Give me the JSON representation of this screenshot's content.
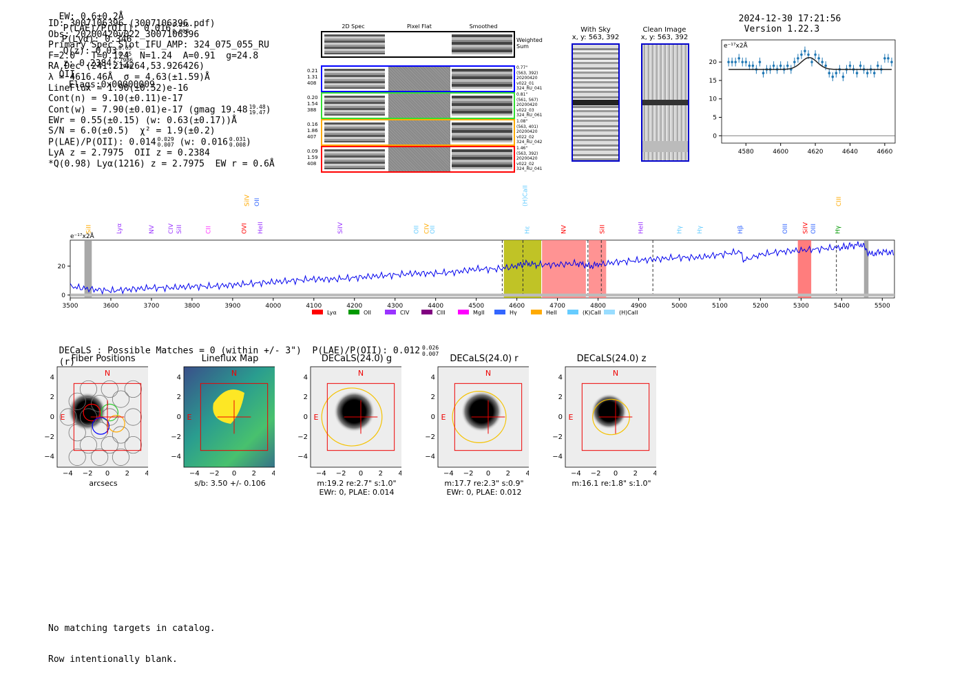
{
  "header": {
    "ew": "EW: 0.6±0.2Å",
    "plae_label": "P(LAE)/P(OII): 0.016",
    "plae_hi": "0.036",
    "plae_lo": "0.008",
    "plya": "P(Lyα): 0.346",
    "qz_label": "Q(z): 0.03",
    "qz_hi": "0.65",
    "qz_lo": "0.65",
    "z_label": "z: 0.2384",
    "z_hi": "2.7986",
    "z_lo": "2.7986",
    "z_tail": "OII",
    "flags": "Flags:0x00000009",
    "datetime": "2024-12-30 17:21:56",
    "version": "Version 1.22.3"
  },
  "info": {
    "lines": [
      "ID: 3007106396 (3007106396.pdf)",
      "Obs: 20200420v022_3007106396",
      "Primary Spec_Slot_IFU_AMP: 324_075_055_RU",
      "F=2.0\"  T=0.124  N=1.24  A=0.91  g=24.8",
      "RA,Dec (241.214264,53.926426)",
      "λ = 4616.46Å  σ = 4.63(±1.59)Å",
      "LineFlux = 1.90(±0.52)e-16",
      "Cont(n) = 9.10(±0.11)e-17",
      "Cont(w) = 7.90(±0.01)e-17 (gmag 19.48",
      "EWr = 0.55(±0.15) (w: 0.63(±0.17))Å",
      "S/N = 6.0(±0.5)  χ² = 1.9(±0.2)",
      "P(LAE)/P(OII): 0.014",
      "LyA z = 2.7975  OII z = 0.2384",
      "*Q(0.98) Lyα(1216) z = 2.7975  EW r = 0.6Å"
    ],
    "gmag_hi": "19.48",
    "gmag_lo": "19.47",
    "plae2_hi": "0.029",
    "plae2_lo": "0.007",
    "plae2_tail": "(w: 0.016",
    "plae2w_hi": "0.031",
    "plae2w_lo": "0.008",
    "plae2_close": ")"
  },
  "cutouts": {
    "col_2d": "2D Spec",
    "col_flat": "Pixel Flat",
    "col_smooth": "Smoothed",
    "weighted": "Weighted Sum",
    "rows": [
      {
        "w1": "0.21",
        "w2": "1.31",
        "w3": "408",
        "n1": "0.77\"",
        "n2": "(563, 392)",
        "n3": "20200420",
        "n4": "v022_01",
        "n5": "324_RU_041",
        "color": "#0000ff"
      },
      {
        "w1": "0.20",
        "w2": "1.54",
        "w3": "388",
        "n1": "0.81\"",
        "n2": "(561, 567)",
        "n3": "20200420",
        "n4": "v022_03",
        "n5": "324_RU_061",
        "color": "#33dd33"
      },
      {
        "w1": "0.16",
        "w2": "1.86",
        "w3": "407",
        "n1": "1.08\"",
        "n2": "(563, 401)",
        "n3": "20200420",
        "n4": "v022_02",
        "n5": "324_RU_042",
        "color": "#ffaa00"
      },
      {
        "w1": "0.09",
        "w2": "1.59",
        "w3": "408",
        "n1": "1.46\"",
        "n2": "(563, 392)",
        "n3": "20200420",
        "n4": "v022_02",
        "n5": "324_RU_041",
        "color": "#ff0000"
      }
    ]
  },
  "sky": {
    "with_sky": "With Sky",
    "with_sky_xy": "x, y: 563, 392",
    "clean": "Clean Image",
    "clean_xy": "x, y: 563, 392"
  },
  "footer": {
    "decals": "DECaLS : Possible Matches = 0 (within +/- 3\")  P(LAE)/P(OII): 0.012",
    "decals_hi": "0.026",
    "decals_lo": "0.007",
    "decals_tail": "(r)",
    "no_match": "No matching targets in catalog.",
    "blank": "Row intentionally blank."
  },
  "panels": [
    {
      "title": "Fiber Positions",
      "xlabel": "arcsecs",
      "sub1": "",
      "sub2": ""
    },
    {
      "title": "Lineflux Map",
      "xlabel": "s/b: 3.50 +/- 0.106",
      "sub1": "",
      "sub2": ""
    },
    {
      "title": "DECaLS(24.0) g",
      "xlabel": "m:19.2  re:2.7\"  s:1.0\"",
      "sub1": "EWr: 0, PLAE: 0.014",
      "sub2": ""
    },
    {
      "title": "DECaLS(24.0) r",
      "xlabel": "m:17.7  re:2.3\"  s:0.9\"",
      "sub1": "EWr: 0, PLAE: 0.012",
      "sub2": ""
    },
    {
      "title": "DECaLS(24.0) z",
      "xlabel": "m:16.1  re:1.8\"  s:1.0\"",
      "sub1": "",
      "sub2": ""
    }
  ],
  "panel_axes": {
    "ticks": [
      "−4",
      "−2",
      "0",
      "2",
      "4"
    ],
    "n_label": "N",
    "e_label": "E"
  },
  "chart_data": [
    {
      "type": "line",
      "name": "line-fit-zoom",
      "unit_label": "e⁻¹⁷x2Å",
      "xlim": [
        4566,
        4666
      ],
      "ylim": [
        -2,
        26
      ],
      "xticks": [
        4580,
        4600,
        4620,
        4640,
        4660
      ],
      "yticks": [
        0,
        5,
        10,
        15,
        20
      ],
      "x": [
        4570,
        4572,
        4574,
        4576,
        4578,
        4580,
        4582,
        4584,
        4586,
        4588,
        4590,
        4592,
        4594,
        4596,
        4598,
        4600,
        4602,
        4604,
        4606,
        4608,
        4610,
        4612,
        4614,
        4616,
        4618,
        4620,
        4622,
        4624,
        4626,
        4628,
        4630,
        4632,
        4634,
        4636,
        4638,
        4640,
        4642,
        4644,
        4646,
        4648,
        4650,
        4652,
        4654,
        4656,
        4658,
        4660,
        4662,
        4664
      ],
      "y": [
        20,
        20,
        20,
        21,
        20,
        20,
        19,
        19,
        18,
        20,
        17,
        18,
        18,
        19,
        18,
        19,
        18,
        19,
        18,
        20,
        21,
        22,
        23,
        22,
        20,
        22,
        21,
        20,
        19,
        17,
        16,
        17,
        18,
        16,
        18,
        19,
        18,
        17,
        19,
        18,
        17,
        18,
        17,
        19,
        18,
        21,
        21,
        20
      ],
      "fit_center": 4616.46,
      "fit_sigma": 4.63,
      "fit_base": 18,
      "fit_amp": 3.2
    },
    {
      "type": "line",
      "name": "full-spectrum",
      "unit_label": "e⁻¹⁷x2Å",
      "xlim": [
        3500,
        5530
      ],
      "ylim": [
        -2,
        38
      ],
      "xticks": [
        3500,
        3600,
        3700,
        3800,
        3900,
        4000,
        4100,
        4200,
        4300,
        4400,
        4500,
        4600,
        4700,
        4800,
        4900,
        5000,
        5100,
        5200,
        5300,
        5400,
        5500
      ],
      "yticks": [
        0,
        20
      ],
      "shaded": [
        {
          "from": 3535,
          "to": 3553,
          "color": "#999999"
        },
        {
          "from": 4568,
          "to": 4660,
          "color": "#b5b800"
        },
        {
          "from": 4662,
          "to": 4770,
          "color": "#ff8080"
        },
        {
          "from": 4777,
          "to": 4820,
          "color": "#ff8080"
        },
        {
          "from": 5292,
          "to": 5325,
          "color": "#ff6666"
        },
        {
          "from": 5455,
          "to": 5466,
          "color": "#999999"
        }
      ],
      "vlines": [
        4564,
        4615,
        4775,
        4808,
        4935,
        5387
      ],
      "lines": [
        {
          "label": "SiII",
          "x": 3545,
          "color": "#ffaa00",
          "tier": 1
        },
        {
          "label": "Lyα",
          "x": 3620,
          "color": "#9933ff",
          "tier": 1
        },
        {
          "label": "NV",
          "x": 3700,
          "color": "#9933ff",
          "tier": 1
        },
        {
          "label": "CIV",
          "x": 3748,
          "color": "#9933ff",
          "tier": 1
        },
        {
          "label": "SiII",
          "x": 3768,
          "color": "#9933ff",
          "tier": 1
        },
        {
          "label": "CII",
          "x": 3840,
          "color": "#ff33ff",
          "tier": 1
        },
        {
          "label": "OVI",
          "x": 3928,
          "color": "#ff0000",
          "tier": 1
        },
        {
          "label": "SiIV",
          "x": 3935,
          "color": "#ffaa00",
          "tier": 2
        },
        {
          "label": "HeII",
          "x": 3968,
          "color": "#9933ff",
          "tier": 1
        },
        {
          "label": "OII",
          "x": 3960,
          "color": "#3366ff",
          "tier": 2
        },
        {
          "label": "SiIV",
          "x": 4165,
          "color": "#9933ff",
          "tier": 1
        },
        {
          "label": "OII",
          "x": 4352,
          "color": "#66ccff",
          "tier": 1
        },
        {
          "label": "CIV",
          "x": 4378,
          "color": "#ffaa00",
          "tier": 1
        },
        {
          "label": "OII",
          "x": 4392,
          "color": "#66ccff",
          "tier": 1
        },
        {
          "label": "(H)CaII",
          "x": 4620,
          "color": "#66ccff",
          "tier": 2
        },
        {
          "label": "Hε",
          "x": 4625,
          "color": "#66ccff",
          "tier": 1
        },
        {
          "label": "NV",
          "x": 4715,
          "color": "#ff0000",
          "tier": 1
        },
        {
          "label": "SiII",
          "x": 4810,
          "color": "#ff0000",
          "tier": 1
        },
        {
          "label": "HeII",
          "x": 4905,
          "color": "#9933ff",
          "tier": 1
        },
        {
          "label": "Hγ",
          "x": 5000,
          "color": "#66ccff",
          "tier": 1
        },
        {
          "label": "Hγ",
          "x": 5050,
          "color": "#66ccff",
          "tier": 1
        },
        {
          "label": "Hβ",
          "x": 5150,
          "color": "#3366ff",
          "tier": 1
        },
        {
          "label": "OIII",
          "x": 5260,
          "color": "#3366ff",
          "tier": 1
        },
        {
          "label": "SiIV",
          "x": 5310,
          "color": "#ff0000",
          "tier": 1
        },
        {
          "label": "OIII",
          "x": 5330,
          "color": "#3366ff",
          "tier": 1
        },
        {
          "label": "CIII",
          "x": 5393,
          "color": "#ffaa00",
          "tier": 2
        },
        {
          "label": "Hγ",
          "x": 5390,
          "color": "#009900",
          "tier": 1
        }
      ],
      "legend": [
        {
          "label": "Lyα",
          "color": "#ff0000"
        },
        {
          "label": "OII",
          "color": "#009900"
        },
        {
          "label": "CIV",
          "color": "#9933ff"
        },
        {
          "label": "CIII",
          "color": "#800080"
        },
        {
          "label": "MgII",
          "color": "#ff00ff"
        },
        {
          "label": "Hγ",
          "color": "#3366ff"
        },
        {
          "label": "HeII",
          "color": "#ffaa00"
        },
        {
          "label": "(K)CaII",
          "color": "#66ccff"
        },
        {
          "label": "(H)CaII",
          "color": "#99ddff"
        }
      ],
      "x": [
        3500,
        3550,
        3600,
        3650,
        3700,
        3750,
        3800,
        3850,
        3900,
        3950,
        4000,
        4050,
        4100,
        4150,
        4200,
        4250,
        4300,
        4350,
        4400,
        4450,
        4500,
        4550,
        4600,
        4620,
        4650,
        4700,
        4750,
        4780,
        4800,
        4850,
        4900,
        4950,
        5000,
        5050,
        5100,
        5150,
        5160,
        5200,
        5250,
        5300,
        5350,
        5400,
        5420,
        5450,
        5470,
        5500,
        5530
      ],
      "y": [
        6,
        4,
        3,
        4,
        5,
        5,
        6,
        6,
        7,
        8,
        9,
        10,
        11,
        11,
        12,
        13,
        14,
        15,
        15,
        16,
        18,
        18,
        20,
        22,
        21,
        21,
        22,
        20,
        21,
        23,
        24,
        25,
        26,
        26,
        28,
        30,
        24,
        28,
        30,
        31,
        32,
        33,
        34,
        35,
        28,
        30,
        29
      ]
    }
  ]
}
